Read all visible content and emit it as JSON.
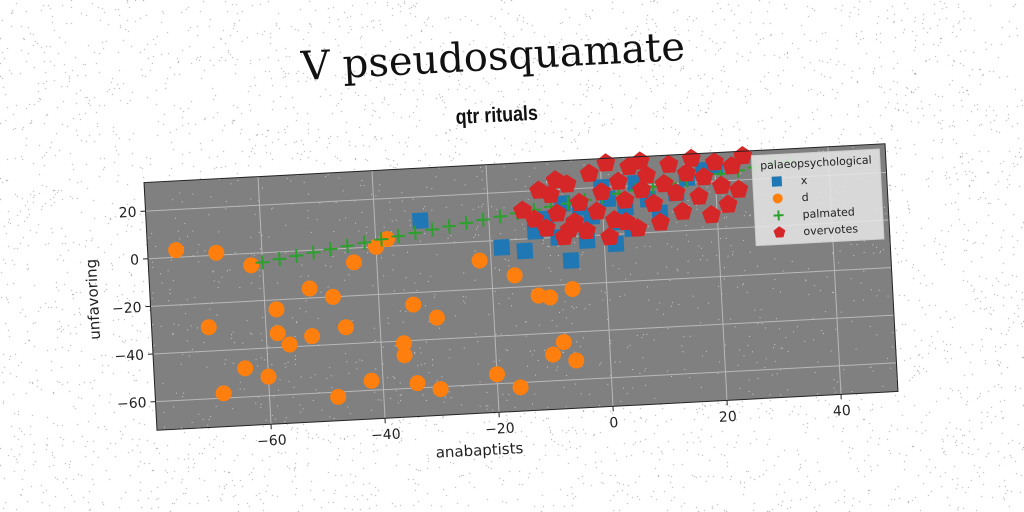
{
  "page": {
    "title": "V pseudosquamate"
  },
  "chart_data": {
    "type": "scatter",
    "title": "qtr rituals",
    "xlabel": "anabaptists",
    "ylabel": "unfavoring",
    "xlim": [
      -80,
      50
    ],
    "ylim": [
      -72,
      32
    ],
    "xticks": [
      -60,
      -40,
      -20,
      0,
      20,
      40
    ],
    "yticks": [
      -60,
      -40,
      -20,
      0,
      20
    ],
    "grid": true,
    "legend": {
      "title": "palaeopsychological",
      "placement": "top-right"
    },
    "series": [
      {
        "name": "x",
        "marker": "square",
        "color": "#1f77b4",
        "points": [
          [
            -32,
            10
          ],
          [
            -18,
            -3
          ],
          [
            -14,
            -5
          ],
          [
            -10,
            8
          ],
          [
            -8,
            0
          ],
          [
            -6,
            -10
          ],
          [
            -5,
            5
          ],
          [
            -4,
            12
          ],
          [
            -3,
            -2
          ],
          [
            -2,
            8
          ],
          [
            0,
            20
          ],
          [
            1,
            15
          ],
          [
            2,
            -4
          ],
          [
            3,
            5
          ],
          [
            4,
            11
          ],
          [
            6,
            21
          ],
          [
            8,
            14
          ],
          [
            10,
            8
          ],
          [
            13,
            16
          ],
          [
            15,
            22
          ],
          [
            18,
            25
          ],
          [
            20,
            26
          ],
          [
            -12,
            3
          ],
          [
            -7,
            14
          ],
          [
            5,
            2
          ]
        ]
      },
      {
        "name": "d",
        "marker": "circle",
        "color": "#ff7f0e",
        "points": [
          [
            -75,
            3
          ],
          [
            -68,
            1
          ],
          [
            -62,
            -5
          ],
          [
            -58,
            -24
          ],
          [
            -52,
            -16
          ],
          [
            -48,
            -20
          ],
          [
            -44,
            -6
          ],
          [
            -40,
            0
          ],
          [
            -38,
            3
          ],
          [
            -34,
            -25
          ],
          [
            -30,
            -31
          ],
          [
            -22,
            -8
          ],
          [
            -16,
            -15
          ],
          [
            -12,
            -24
          ],
          [
            -10,
            -25
          ],
          [
            -6,
            -22
          ],
          [
            -58,
            -34
          ],
          [
            -56,
            -39
          ],
          [
            -52,
            -36
          ],
          [
            -46,
            -33
          ],
          [
            -36,
            -41
          ],
          [
            -36,
            -46
          ],
          [
            -42,
            -56
          ],
          [
            -68,
            -58
          ],
          [
            -60,
            -52
          ],
          [
            -48,
            -62
          ],
          [
            -34,
            -58
          ],
          [
            -30,
            -61
          ],
          [
            -20,
            -56
          ],
          [
            -16,
            -62
          ],
          [
            -10,
            -49
          ],
          [
            -8,
            -44
          ],
          [
            -6,
            -52
          ],
          [
            -70,
            -30
          ],
          [
            -64,
            -48
          ]
        ]
      },
      {
        "name": "palmated",
        "marker": "plus",
        "color": "#2ca02c",
        "points": [
          [
            -30,
            6
          ],
          [
            -27,
            7
          ],
          [
            -24,
            8
          ],
          [
            -21,
            9
          ],
          [
            -18,
            10
          ],
          [
            -15,
            11
          ],
          [
            -12,
            12
          ],
          [
            -9,
            13
          ],
          [
            -6,
            14
          ],
          [
            -3,
            15
          ],
          [
            0,
            16
          ],
          [
            3,
            17
          ],
          [
            6,
            18
          ],
          [
            9,
            19
          ],
          [
            12,
            20
          ],
          [
            15,
            21
          ],
          [
            18,
            22
          ],
          [
            21,
            23
          ],
          [
            24,
            24
          ],
          [
            27,
            25
          ],
          [
            30,
            26
          ],
          [
            33,
            27
          ],
          [
            -33,
            5
          ],
          [
            -36,
            4
          ],
          [
            -39,
            3
          ],
          [
            -42,
            2
          ],
          [
            -45,
            1
          ],
          [
            -48,
            0
          ],
          [
            -51,
            -1
          ],
          [
            -54,
            -2
          ],
          [
            -57,
            -3
          ],
          [
            -60,
            -4
          ]
        ]
      },
      {
        "name": "overvotes",
        "marker": "pentagon",
        "color": "#d62728",
        "points": [
          [
            -14,
            12
          ],
          [
            -12,
            8
          ],
          [
            -10,
            4
          ],
          [
            -9,
            18
          ],
          [
            -8,
            10
          ],
          [
            -7,
            0
          ],
          [
            -6,
            22
          ],
          [
            -5,
            6
          ],
          [
            -4,
            14
          ],
          [
            -3,
            2
          ],
          [
            -2,
            26
          ],
          [
            -1,
            10
          ],
          [
            0,
            18
          ],
          [
            1,
            30
          ],
          [
            2,
            6
          ],
          [
            3,
            22
          ],
          [
            4,
            14
          ],
          [
            5,
            28
          ],
          [
            6,
            2
          ],
          [
            7,
            30
          ],
          [
            8,
            24
          ],
          [
            9,
            12
          ],
          [
            10,
            4
          ],
          [
            11,
            20
          ],
          [
            12,
            28
          ],
          [
            13,
            16
          ],
          [
            14,
            8
          ],
          [
            15,
            24
          ],
          [
            16,
            30
          ],
          [
            17,
            14
          ],
          [
            18,
            22
          ],
          [
            19,
            6
          ],
          [
            20,
            28
          ],
          [
            21,
            18
          ],
          [
            22,
            10
          ],
          [
            23,
            26
          ],
          [
            24,
            16
          ],
          [
            25,
            30
          ],
          [
            -11,
            20
          ],
          [
            -6,
            3
          ],
          [
            1,
            -1
          ],
          [
            4,
            5
          ],
          [
            7,
            18
          ],
          [
            -8,
            24
          ]
        ]
      }
    ]
  }
}
